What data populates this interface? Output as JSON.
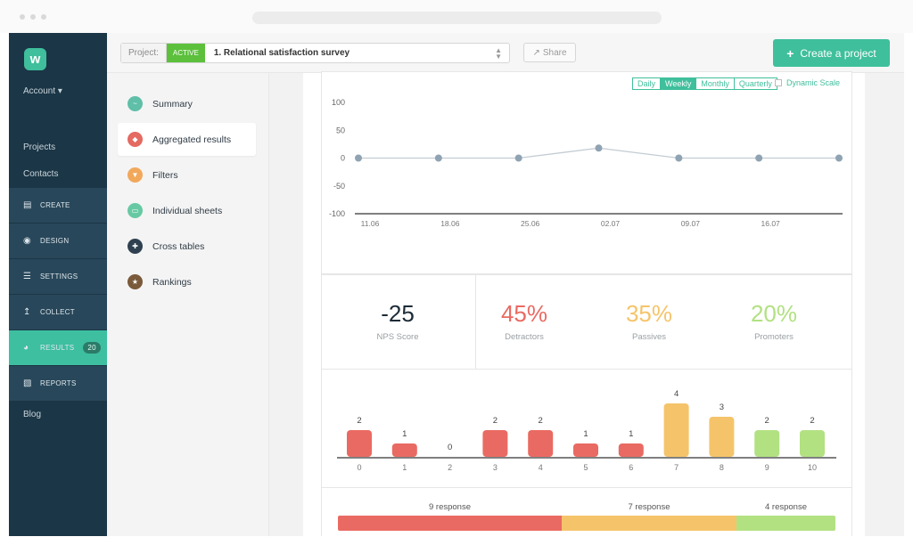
{
  "topbar": {
    "project_label": "Project:",
    "status": "ACTIVE",
    "project_name": "1. Relational satisfaction survey",
    "share_label": "Share",
    "create_label": "Create a project"
  },
  "sidebar": {
    "logo": "w",
    "account": "Account ▾",
    "links": [
      "Projects",
      "Contacts"
    ],
    "items": [
      {
        "label": "CREATE",
        "icon": "clipboard-icon"
      },
      {
        "label": "DESIGN",
        "icon": "palette-icon"
      },
      {
        "label": "SETTINGS",
        "icon": "sliders-icon"
      },
      {
        "label": "COLLECT",
        "icon": "upload-icon"
      },
      {
        "label": "RESULTS",
        "icon": "gauge-icon",
        "badge": "20"
      },
      {
        "label": "REPORTS",
        "icon": "bar-chart-icon"
      }
    ],
    "blog": "Blog"
  },
  "submenu": {
    "items": [
      {
        "label": "Summary",
        "icon": "wave-icon",
        "color": "#5fbfa8"
      },
      {
        "label": "Aggregated results",
        "icon": "layers-icon",
        "color": "#e46a62"
      },
      {
        "label": "Filters",
        "icon": "funnel-icon",
        "color": "#f2a85b"
      },
      {
        "label": "Individual sheets",
        "icon": "document-icon",
        "color": "#67c9a4"
      },
      {
        "label": "Cross tables",
        "icon": "grid-icon",
        "color": "#2f4150"
      },
      {
        "label": "Rankings",
        "icon": "star-icon",
        "color": "#7a5a3a"
      }
    ],
    "active_index": 1
  },
  "line_controls": {
    "periods": [
      "Daily",
      "Weekly",
      "Monthly",
      "Quarterly"
    ],
    "selected": "Weekly",
    "dynamic_scale": "Dynamic Scale"
  },
  "nps": {
    "score": "-25",
    "score_label": "NPS Score",
    "detractors": "45%",
    "detractors_label": "Detractors",
    "passives": "35%",
    "passives_label": "Passives",
    "promoters": "20%",
    "promoters_label": "Promoters"
  },
  "responses": {
    "detractors": "9 response",
    "passives": "7 response",
    "promoters": "4 response"
  },
  "colors": {
    "accent": "#3fbf9c",
    "detractor": "#e96a62",
    "passive": "#f5c46a",
    "promoter": "#b2e182",
    "sidebar": "#1b3646"
  },
  "chart_data": [
    {
      "type": "line",
      "x": [
        "11.06",
        "18.06",
        "25.06",
        "02.07",
        "09.07",
        "16.07",
        ""
      ],
      "series": [
        {
          "values": [
            0,
            0,
            0,
            18,
            0,
            0,
            0
          ]
        }
      ],
      "yticks": [
        "100",
        "50",
        "0",
        "-50",
        "-100"
      ],
      "ylim": [
        -100,
        100
      ]
    },
    {
      "type": "bar",
      "categories": [
        "0",
        "1",
        "2",
        "3",
        "4",
        "5",
        "6",
        "7",
        "8",
        "9",
        "10"
      ],
      "values": [
        2,
        1,
        0,
        2,
        2,
        1,
        1,
        4,
        3,
        2,
        2
      ]
    }
  ]
}
